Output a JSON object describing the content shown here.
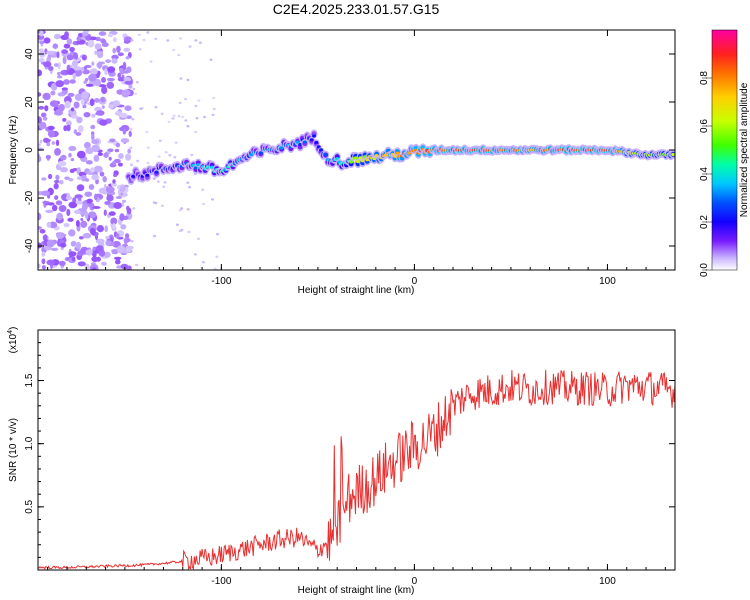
{
  "title": "C2E4.2025.233.01.57.G15",
  "colors": {
    "snr_line": "#e83030",
    "frame": "#000000",
    "colormap": [
      "#ffffff",
      "#c8b4ff",
      "#9a5cff",
      "#7a1cff",
      "#1400ff",
      "#0050ff",
      "#00c8ff",
      "#00ffa8",
      "#40ff00",
      "#c8ff00",
      "#ffd000",
      "#ff7000",
      "#ff2020",
      "#ff00a0"
    ]
  },
  "chart_data": [
    {
      "type": "heatmap",
      "title": "C2E4.2025.233.01.57.G15",
      "xlabel": "Height of straight line (km)",
      "ylabel": "Frequency (Hz)",
      "xlim": [
        -195,
        135
      ],
      "ylim": [
        -50,
        50
      ],
      "x_ticks": [
        -100,
        0,
        100
      ],
      "y_ticks": [
        -40,
        -20,
        0,
        20,
        40
      ],
      "colorbar": {
        "label": "Normalized spectral amplitude",
        "range": [
          0,
          1
        ],
        "ticks": [
          "0.0",
          "0.2",
          "0.4",
          "0.6",
          "0.8"
        ]
      },
      "signal_track": {
        "x": [
          -148,
          -140,
          -130,
          -120,
          -110,
          -100,
          -90,
          -80,
          -70,
          -60,
          -52,
          -45,
          -38,
          -30,
          -20,
          -10,
          0,
          10,
          20,
          30,
          40,
          50,
          60,
          70,
          80,
          90,
          100,
          110,
          120,
          130,
          135
        ],
        "freq": [
          -11,
          -10,
          -8,
          -6,
          -7,
          -9,
          -4,
          -1,
          1,
          3,
          5,
          -3,
          -5,
          -4,
          -3,
          -2,
          -1,
          0,
          0,
          0,
          0,
          0,
          0,
          0,
          0,
          0,
          0,
          -1,
          -2,
          -2,
          -2
        ],
        "amplitude": [
          0.3,
          0.35,
          0.4,
          0.45,
          0.5,
          0.55,
          0.5,
          0.45,
          0.5,
          0.45,
          0.35,
          0.5,
          0.55,
          0.7,
          0.8,
          0.85,
          0.9,
          0.92,
          0.95,
          0.95,
          0.9,
          0.9,
          0.85,
          0.9,
          0.95,
          0.95,
          0.95,
          0.8,
          0.7,
          0.7,
          0.7
        ]
      },
      "noise_region_x": [
        -195,
        -147
      ]
    },
    {
      "type": "line",
      "xlabel": "Height of straight line (km)",
      "ylabel": "SNR (10 * v/v)",
      "scale_label": "(x10",
      "scale_exponent": "4",
      "scale_suffix": ")",
      "xlim": [
        -195,
        135
      ],
      "ylim": [
        0,
        1.9
      ],
      "x_ticks": [
        -100,
        0,
        100
      ],
      "y_ticks": [
        "0.5",
        "1.0",
        "1.5"
      ],
      "series": [
        {
          "name": "SNR",
          "x": [
            -195,
            -180,
            -160,
            -140,
            -125,
            -115,
            -105,
            -100,
            -90,
            -80,
            -70,
            -60,
            -55,
            -50,
            -45,
            -40,
            -35,
            -30,
            -25,
            -20,
            -15,
            -10,
            -5,
            0,
            5,
            10,
            15,
            20,
            25,
            30,
            40,
            50,
            60,
            70,
            80,
            90,
            100,
            110,
            120,
            130,
            135
          ],
          "y": [
            0.02,
            0.02,
            0.03,
            0.04,
            0.06,
            0.08,
            0.1,
            0.12,
            0.16,
            0.2,
            0.24,
            0.26,
            0.2,
            0.16,
            0.22,
            0.3,
            0.55,
            0.62,
            0.66,
            0.72,
            0.8,
            0.86,
            0.92,
            0.98,
            1.02,
            1.08,
            1.18,
            1.3,
            1.36,
            1.4,
            1.42,
            1.45,
            1.43,
            1.45,
            1.44,
            1.44,
            1.42,
            1.46,
            1.45,
            1.43,
            1.42
          ]
        }
      ]
    }
  ]
}
